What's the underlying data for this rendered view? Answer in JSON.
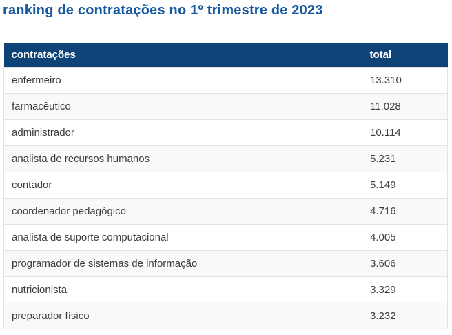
{
  "page": {
    "title": "ranking de contratações no 1º trimestre de 2023"
  },
  "colors": {
    "header_bg": "#0e4377",
    "title": "#1558a0",
    "row_alt": "#f9f9f9",
    "border": "#e2e2e2",
    "text": "#3d3d3d",
    "header_text": "#ffffff"
  },
  "table": {
    "columns": [
      {
        "key": "label",
        "header": "contratações"
      },
      {
        "key": "value",
        "header": "total"
      }
    ],
    "rows": [
      {
        "label": "enfermeiro",
        "value": "13.310"
      },
      {
        "label": "farmacêutico",
        "value": "11.028"
      },
      {
        "label": "administrador",
        "value": "10.114"
      },
      {
        "label": "analista de recursos humanos",
        "value": "5.231"
      },
      {
        "label": "contador",
        "value": "5.149"
      },
      {
        "label": "coordenador pedagógico",
        "value": "4.716"
      },
      {
        "label": "analista de suporte computacional",
        "value": "4.005"
      },
      {
        "label": "programador de sistemas de informação",
        "value": "3.606"
      },
      {
        "label": "nutricionista",
        "value": "3.329"
      },
      {
        "label": "preparador físico",
        "value": "3.232"
      }
    ]
  },
  "chart_data": {
    "type": "table",
    "title": "ranking de contratações no 1º trimestre de 2023",
    "columns": [
      "contratações",
      "total"
    ],
    "categories": [
      "enfermeiro",
      "farmacêutico",
      "administrador",
      "analista de recursos humanos",
      "contador",
      "coordenador pedagógico",
      "analista de suporte computacional",
      "programador de sistemas de informação",
      "nutricionista",
      "preparador físico"
    ],
    "values": [
      13310,
      11028,
      10114,
      5231,
      5149,
      4716,
      4005,
      3606,
      3329,
      3232
    ]
  }
}
